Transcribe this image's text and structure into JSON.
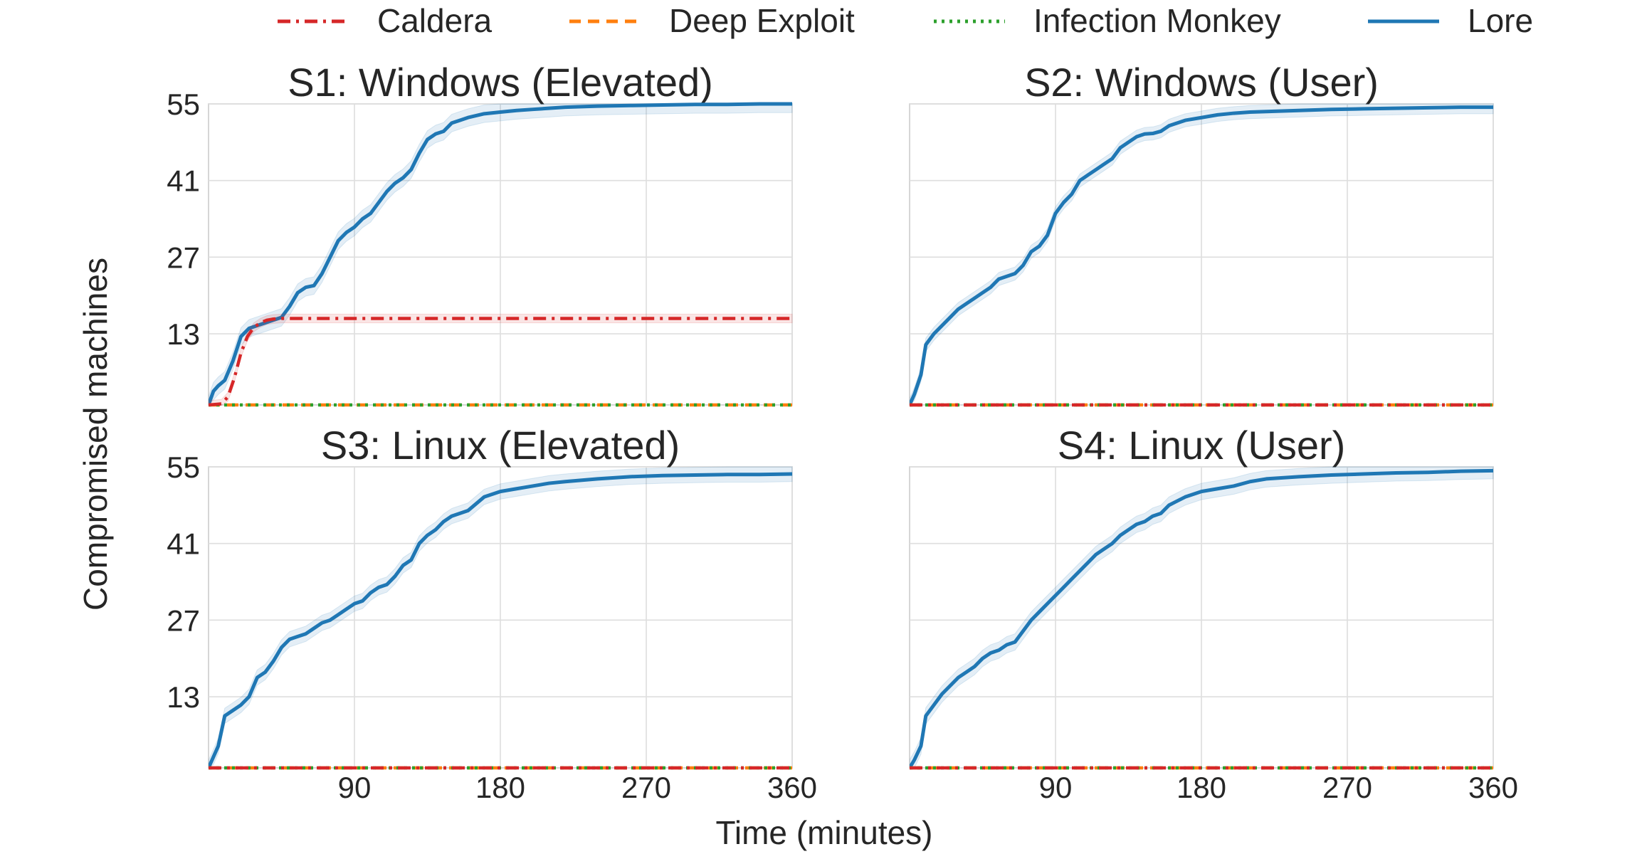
{
  "legend": [
    {
      "label": "Caldera",
      "color": "#d62728",
      "dash": "dashdot"
    },
    {
      "label": "Deep Exploit",
      "color": "#ff7f0e",
      "dash": "dashed"
    },
    {
      "label": "Infection Monkey",
      "color": "#2ca02c",
      "dash": "dotted"
    },
    {
      "label": "Lore",
      "color": "#1f77b4",
      "dash": "solid"
    }
  ],
  "xlabel": "Time (minutes)",
  "ylabel": "Compromised machines",
  "chart_data": [
    {
      "type": "line",
      "title": "S1: Windows (Elevated)",
      "xlim": [
        0,
        360
      ],
      "ylim": [
        0,
        55
      ],
      "xticks": [
        90,
        180,
        270,
        360
      ],
      "xtick_labels_visible": false,
      "yticks": [
        13,
        27,
        41,
        55
      ],
      "ytick_labels_visible": true,
      "grid": true,
      "series": [
        {
          "name": "Lore",
          "color": "#1f77b4",
          "x": [
            0,
            3,
            6,
            10,
            15,
            20,
            25,
            30,
            35,
            40,
            45,
            50,
            55,
            60,
            65,
            70,
            75,
            80,
            85,
            90,
            95,
            100,
            105,
            110,
            115,
            120,
            125,
            130,
            135,
            140,
            145,
            150,
            155,
            160,
            170,
            180,
            190,
            200,
            210,
            220,
            240,
            260,
            280,
            300,
            320,
            340,
            360
          ],
          "y": [
            0,
            2.5,
            3.5,
            4.5,
            8,
            12.5,
            14,
            14.5,
            15,
            15.5,
            16,
            18,
            20.5,
            21.5,
            21.8,
            24,
            27,
            30,
            31.5,
            32.5,
            34,
            35,
            37,
            39,
            40.5,
            41.5,
            43,
            46,
            48.5,
            49.5,
            50,
            51.5,
            52,
            52.5,
            53.2,
            53.5,
            53.8,
            54,
            54.2,
            54.4,
            54.6,
            54.7,
            54.8,
            54.9,
            54.9,
            55,
            55
          ],
          "band": 1.6
        },
        {
          "name": "Caldera",
          "color": "#d62728",
          "x": [
            0,
            8,
            12,
            16,
            20,
            24,
            28,
            32,
            36,
            40,
            45,
            60,
            120,
            180,
            240,
            300,
            360
          ],
          "y": [
            0,
            0.2,
            1.5,
            5,
            9.5,
            12.5,
            14.2,
            15,
            15.5,
            15.7,
            15.8,
            15.8,
            15.8,
            15.8,
            15.8,
            15.8,
            15.8
          ],
          "band": 0.8
        },
        {
          "name": "Deep Exploit",
          "color": "#ff7f0e",
          "x": [
            0,
            360
          ],
          "y": [
            0,
            0
          ]
        },
        {
          "name": "Infection Monkey",
          "color": "#2ca02c",
          "x": [
            0,
            360
          ],
          "y": [
            0,
            0
          ]
        }
      ]
    },
    {
      "type": "line",
      "title": "S2: Windows (User)",
      "xlim": [
        0,
        360
      ],
      "ylim": [
        0,
        55
      ],
      "xticks": [
        90,
        180,
        270,
        360
      ],
      "xtick_labels_visible": false,
      "yticks": [
        13,
        27,
        41,
        55
      ],
      "ytick_labels_visible": false,
      "grid": true,
      "series": [
        {
          "name": "Lore",
          "color": "#1f77b4",
          "x": [
            0,
            3,
            7,
            10,
            15,
            20,
            25,
            30,
            35,
            40,
            45,
            50,
            55,
            60,
            65,
            70,
            75,
            80,
            85,
            90,
            95,
            100,
            105,
            110,
            115,
            120,
            125,
            130,
            135,
            140,
            145,
            150,
            155,
            160,
            170,
            180,
            190,
            200,
            210,
            220,
            240,
            260,
            280,
            300,
            320,
            340,
            360
          ],
          "y": [
            0,
            2,
            5.5,
            11,
            13,
            14.5,
            16,
            17.5,
            18.5,
            19.5,
            20.5,
            21.5,
            23,
            23.5,
            24,
            25.5,
            28,
            29,
            31,
            35,
            37,
            38.5,
            41,
            42,
            43,
            44,
            45,
            47,
            48,
            49,
            49.5,
            49.6,
            50,
            51,
            52,
            52.5,
            53,
            53.3,
            53.5,
            53.6,
            53.8,
            54,
            54.1,
            54.2,
            54.3,
            54.4,
            54.4
          ],
          "band": 1.2
        },
        {
          "name": "Caldera",
          "color": "#d62728",
          "x": [
            0,
            360
          ],
          "y": [
            0,
            0
          ]
        },
        {
          "name": "Deep Exploit",
          "color": "#ff7f0e",
          "x": [
            0,
            360
          ],
          "y": [
            0,
            0
          ]
        },
        {
          "name": "Infection Monkey",
          "color": "#2ca02c",
          "x": [
            0,
            360
          ],
          "y": [
            0,
            0
          ]
        }
      ]
    },
    {
      "type": "line",
      "title": "S3: Linux (Elevated)",
      "xlim": [
        0,
        360
      ],
      "ylim": [
        0,
        55
      ],
      "xticks": [
        90,
        180,
        270,
        360
      ],
      "xtick_labels_visible": true,
      "yticks": [
        13,
        27,
        41,
        55
      ],
      "ytick_labels_visible": true,
      "grid": true,
      "series": [
        {
          "name": "Lore",
          "color": "#1f77b4",
          "x": [
            0,
            3,
            6,
            10,
            15,
            20,
            25,
            30,
            35,
            40,
            45,
            50,
            55,
            60,
            65,
            70,
            75,
            80,
            85,
            90,
            95,
            100,
            105,
            110,
            115,
            120,
            125,
            130,
            135,
            140,
            145,
            150,
            155,
            160,
            170,
            180,
            190,
            200,
            210,
            220,
            240,
            260,
            280,
            300,
            320,
            340,
            360
          ],
          "y": [
            0,
            2,
            4,
            9.5,
            10.5,
            11.5,
            13,
            16.5,
            17.5,
            19.5,
            22,
            23.5,
            24,
            24.5,
            25.5,
            26.5,
            27,
            28,
            29,
            30,
            30.5,
            32,
            33,
            33.5,
            35,
            37,
            38,
            41,
            42.5,
            43.5,
            45,
            46,
            46.5,
            47,
            49.5,
            50.5,
            51,
            51.5,
            52,
            52.3,
            52.8,
            53.2,
            53.4,
            53.5,
            53.6,
            53.6,
            53.7
          ],
          "band": 1.4
        },
        {
          "name": "Caldera",
          "color": "#d62728",
          "x": [
            0,
            360
          ],
          "y": [
            0,
            0
          ]
        },
        {
          "name": "Deep Exploit",
          "color": "#ff7f0e",
          "x": [
            0,
            360
          ],
          "y": [
            0,
            0
          ]
        },
        {
          "name": "Infection Monkey",
          "color": "#2ca02c",
          "x": [
            0,
            360
          ],
          "y": [
            0,
            0
          ]
        }
      ]
    },
    {
      "type": "line",
      "title": "S4: Linux (User)",
      "xlim": [
        0,
        360
      ],
      "ylim": [
        0,
        55
      ],
      "xticks": [
        90,
        180,
        270,
        360
      ],
      "xtick_labels_visible": true,
      "yticks": [
        13,
        27,
        41,
        55
      ],
      "ytick_labels_visible": false,
      "grid": true,
      "series": [
        {
          "name": "Lore",
          "color": "#1f77b4",
          "x": [
            0,
            3,
            7,
            10,
            15,
            20,
            25,
            30,
            35,
            40,
            45,
            50,
            55,
            60,
            65,
            70,
            75,
            80,
            85,
            90,
            95,
            100,
            105,
            110,
            115,
            120,
            125,
            130,
            135,
            140,
            145,
            150,
            155,
            160,
            170,
            180,
            190,
            200,
            210,
            220,
            240,
            260,
            280,
            300,
            320,
            340,
            360
          ],
          "y": [
            0,
            1.5,
            4,
            9.5,
            11.5,
            13.5,
            15,
            16.5,
            17.5,
            18.5,
            20,
            21,
            21.5,
            22.5,
            23,
            25,
            27,
            28.5,
            30,
            31.5,
            33,
            34.5,
            36,
            37.5,
            39,
            40,
            41,
            42.5,
            43.5,
            44.5,
            45,
            46,
            46.5,
            48,
            49.5,
            50.5,
            51,
            51.5,
            52.3,
            52.8,
            53.2,
            53.5,
            53.7,
            53.9,
            54,
            54.2,
            54.3
          ],
          "band": 1.5
        },
        {
          "name": "Caldera",
          "color": "#d62728",
          "x": [
            0,
            360
          ],
          "y": [
            0,
            0
          ]
        },
        {
          "name": "Deep Exploit",
          "color": "#ff7f0e",
          "x": [
            0,
            360
          ],
          "y": [
            0,
            0
          ]
        },
        {
          "name": "Infection Monkey",
          "color": "#2ca02c",
          "x": [
            0,
            360
          ],
          "y": [
            0,
            0
          ]
        }
      ]
    }
  ]
}
